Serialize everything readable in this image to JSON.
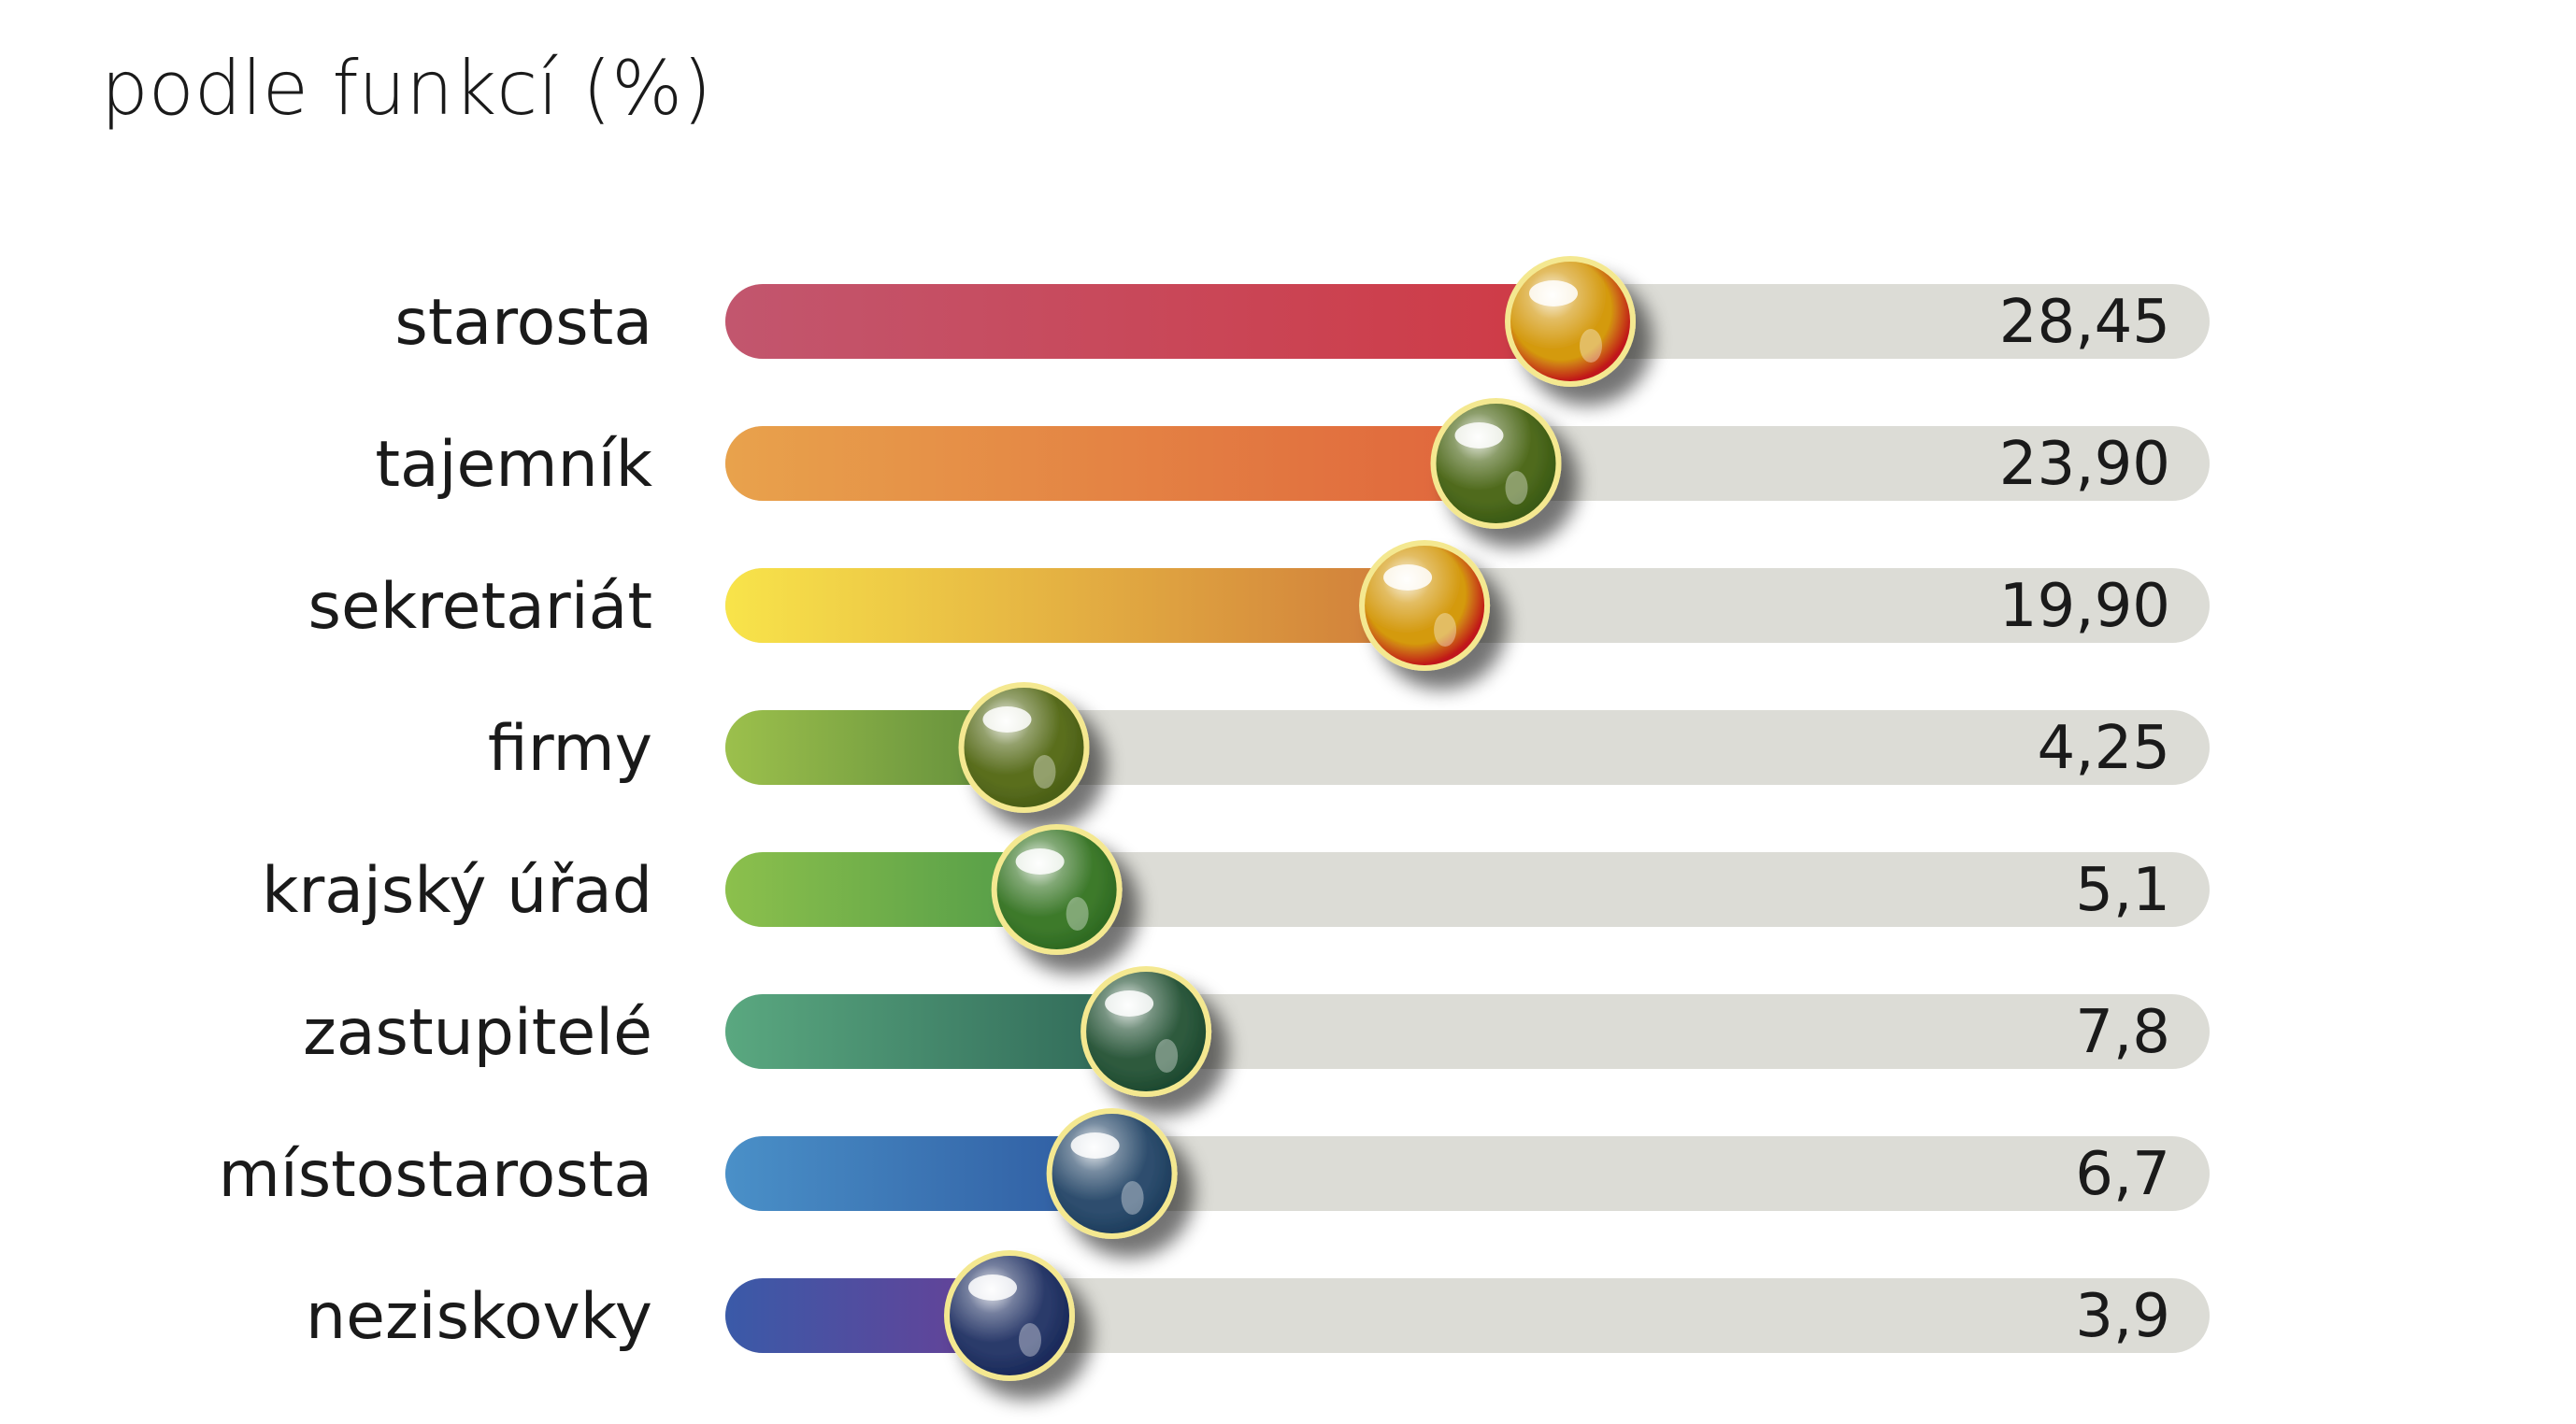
{
  "chart_data": {
    "type": "bar",
    "title": "podle funkcí (%)",
    "xlabel": "",
    "ylabel": "",
    "categories": [
      "starosta",
      "tajemník",
      "sekretariát",
      "firmy",
      "krajský úřad",
      "zastupitelé",
      "místostarosta",
      "neziskovky"
    ],
    "values": [
      28.45,
      23.9,
      19.9,
      4.25,
      5.1,
      7.8,
      6.7,
      3.9
    ],
    "value_labels": [
      "28,45",
      "23,90",
      "19,90",
      "4,25",
      "5,1",
      "7,8",
      "6,7",
      "3,9"
    ],
    "colors": [
      [
        "#c2566e",
        "#cf3a45"
      ],
      [
        "#e8a24c",
        "#e0653c"
      ],
      [
        "#f8e44a",
        "#cf7a3a"
      ],
      [
        "#9cc04c",
        "#5e8a3a"
      ],
      [
        "#8cc04c",
        "#4f9a48"
      ],
      [
        "#5aa880",
        "#2e6656"
      ],
      [
        "#4a90c8",
        "#2e5aa0"
      ],
      [
        "#3a5aa8",
        "#6a3f96"
      ]
    ],
    "ball_colors": [
      "#d49a10",
      "#4f6a1c",
      "#d49a10",
      "#5a6e1e",
      "#3e7a2c",
      "#2e5a3e",
      "#2e4e6e",
      "#2a3a6a"
    ],
    "ball_rims": [
      "#c0161a",
      "#3a5a16",
      "#c0161a",
      "#4a5e16",
      "#2e6a22",
      "#1e4a30",
      "#1e3e5e",
      "#1a2a5a"
    ],
    "track_color": "#dcdcd6",
    "grid": false,
    "legend": "none"
  }
}
